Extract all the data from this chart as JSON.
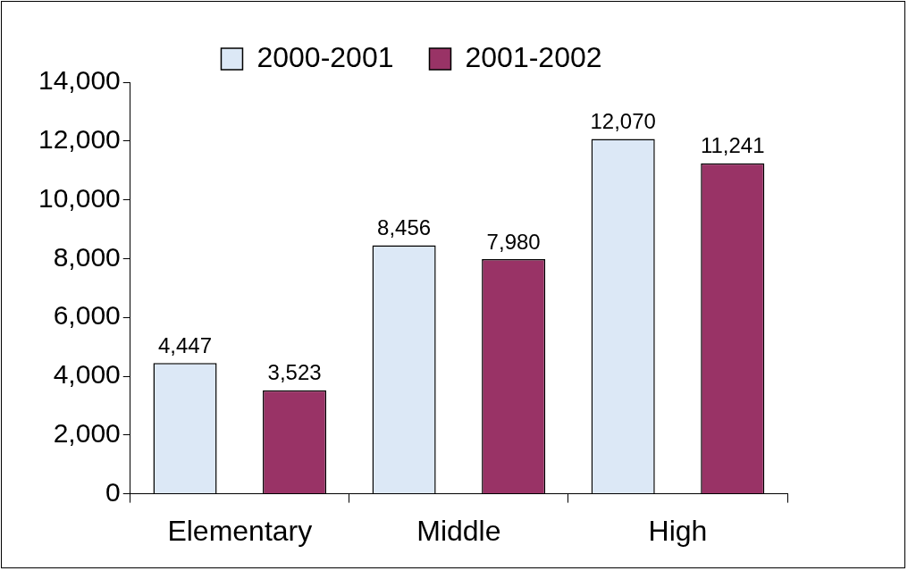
{
  "chart_data": {
    "type": "bar",
    "categories": [
      "Elementary",
      "Middle",
      "High"
    ],
    "series": [
      {
        "name": "2000-2001",
        "color": "#dce8f6",
        "values": [
          4447,
          8456,
          12070
        ],
        "value_labels": [
          "4,447",
          "8,456",
          "12,070"
        ]
      },
      {
        "name": "2001-2002",
        "color": "#993366",
        "values": [
          3523,
          7980,
          11241
        ],
        "value_labels": [
          "3,523",
          "7,980",
          "11,241"
        ]
      }
    ],
    "ylim": [
      0,
      14000
    ],
    "yticks": [
      0,
      {
        "value": 2000,
        "label": "2,000"
      },
      {
        "value": 4000,
        "label": "4,000"
      },
      {
        "value": 6000,
        "label": "6,000"
      },
      {
        "value": 8000,
        "label": "8,000"
      },
      {
        "value": 10000,
        "label": "10,000"
      },
      {
        "value": 12000,
        "label": "12,000"
      },
      {
        "value": 14000,
        "label": "14,000"
      }
    ],
    "grid": false,
    "legend": "top"
  }
}
